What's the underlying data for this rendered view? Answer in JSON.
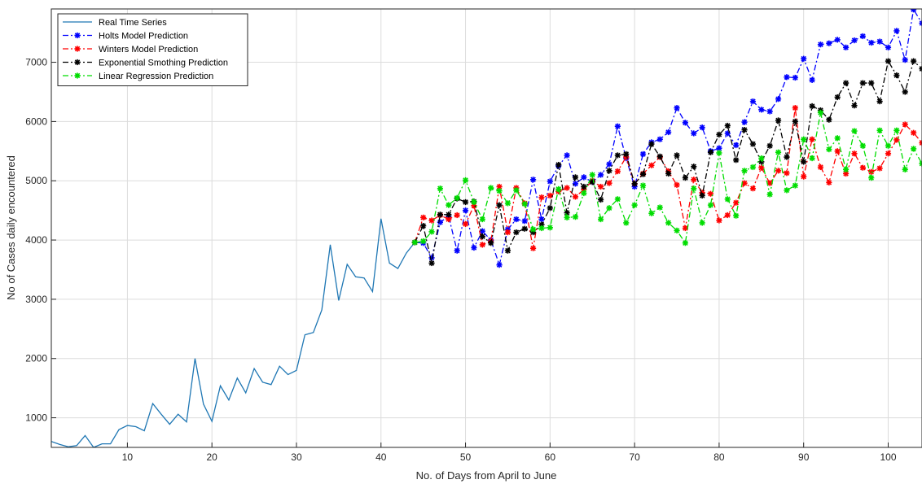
{
  "chart_data": {
    "type": "line",
    "xlabel": "No. of Days from April to June",
    "ylabel": "No of Cases daily encountered",
    "xlim": [
      1,
      104
    ],
    "ylim": [
      500,
      7900
    ],
    "xticks": [
      10,
      20,
      30,
      40,
      50,
      60,
      70,
      80,
      90,
      100
    ],
    "yticks": [
      1000,
      2000,
      3000,
      4000,
      5000,
      6000,
      7000
    ],
    "grid": true,
    "legend_position": "top-left",
    "series": [
      {
        "name": "Real Time Series",
        "color": "#1f77b4",
        "style": "solid",
        "marker": "none",
        "x": [
          1,
          2,
          3,
          4,
          5,
          6,
          7,
          8,
          9,
          10,
          11,
          12,
          13,
          14,
          15,
          16,
          17,
          18,
          19,
          20,
          21,
          22,
          23,
          24,
          25,
          26,
          27,
          28,
          29,
          30,
          31,
          32,
          33,
          34,
          35,
          36,
          37,
          38,
          39,
          40,
          41,
          42,
          43,
          44
        ],
        "y": [
          600,
          550,
          510,
          530,
          700,
          500,
          560,
          560,
          800,
          870,
          850,
          780,
          1240,
          1060,
          890,
          1060,
          930,
          2000,
          1230,
          940,
          1540,
          1300,
          1670,
          1420,
          1830,
          1600,
          1560,
          1870,
          1730,
          1800,
          2400,
          2440,
          2820,
          3920,
          2980,
          3590,
          3380,
          3360,
          3130,
          4360,
          3610,
          3520,
          3780,
          3960
        ]
      },
      {
        "name": "Holts Model Prediction",
        "color": "#0000ff",
        "style": "dash-dot",
        "marker": "star",
        "x": [
          44,
          45,
          46,
          47,
          48,
          49,
          50,
          51,
          52,
          53,
          54,
          55,
          56,
          57,
          58,
          59,
          60,
          61,
          62,
          63,
          64,
          65,
          66,
          67,
          68,
          69,
          70,
          71,
          72,
          73,
          74,
          75,
          76,
          77,
          78,
          79,
          80,
          81,
          82,
          83,
          84,
          85,
          86,
          87,
          88,
          89,
          90,
          91,
          92,
          93,
          94,
          95,
          96,
          97,
          98,
          99,
          100,
          101,
          102,
          103,
          104
        ],
        "y": [
          3960,
          3950,
          3700,
          4300,
          4400,
          3820,
          4500,
          3870,
          4150,
          4000,
          3580,
          4180,
          4350,
          4320,
          5020,
          4350,
          4990,
          5250,
          5430,
          4950,
          5060,
          4980,
          5100,
          5280,
          5920,
          5380,
          4900,
          5450,
          5650,
          5700,
          5820,
          6230,
          5980,
          5800,
          5900,
          5500,
          5550,
          5800,
          5600,
          5990,
          6340,
          6200,
          6170,
          6380,
          6750,
          6740,
          7060,
          6700,
          7300,
          7320,
          7380,
          7250,
          7370,
          7440,
          7330,
          7350,
          7250,
          7530,
          7040,
          7890,
          7660
        ]
      },
      {
        "name": "Winters Model Prediction",
        "color": "#ff0000",
        "style": "dash-dot",
        "marker": "star",
        "x": [
          44,
          45,
          46,
          47,
          48,
          49,
          50,
          51,
          52,
          53,
          54,
          55,
          56,
          57,
          58,
          59,
          60,
          61,
          62,
          63,
          64,
          65,
          66,
          67,
          68,
          69,
          70,
          71,
          72,
          73,
          74,
          75,
          76,
          77,
          78,
          79,
          80,
          81,
          82,
          83,
          84,
          85,
          86,
          87,
          88,
          89,
          90,
          91,
          92,
          93,
          94,
          95,
          96,
          97,
          98,
          99,
          100,
          101,
          102,
          103,
          104
        ],
        "y": [
          3960,
          4380,
          4330,
          4420,
          4350,
          4420,
          4270,
          4580,
          3920,
          3980,
          4900,
          4130,
          4880,
          4620,
          3860,
          4720,
          4750,
          4820,
          4880,
          4730,
          4850,
          5000,
          4900,
          4960,
          5160,
          5400,
          4950,
          5120,
          5260,
          5400,
          5160,
          4930,
          4200,
          5020,
          4800,
          4780,
          4330,
          4420,
          4630,
          4960,
          4870,
          5220,
          4960,
          5170,
          5130,
          6230,
          5070,
          5700,
          5230,
          4970,
          5500,
          5120,
          5460,
          5220,
          5150,
          5210,
          5460,
          5690,
          5950,
          5810,
          5640
        ]
      },
      {
        "name": "Exponential Smothing Prediction",
        "color": "#000000",
        "style": "dash-dot",
        "marker": "star",
        "x": [
          44,
          45,
          46,
          47,
          48,
          49,
          50,
          51,
          52,
          53,
          54,
          55,
          56,
          57,
          58,
          59,
          60,
          61,
          62,
          63,
          64,
          65,
          66,
          67,
          68,
          69,
          70,
          71,
          72,
          73,
          74,
          75,
          76,
          77,
          78,
          79,
          80,
          81,
          82,
          83,
          84,
          85,
          86,
          87,
          88,
          89,
          90,
          91,
          92,
          93,
          94,
          95,
          96,
          97,
          98,
          99,
          100,
          101,
          102,
          103,
          104
        ],
        "y": [
          3960,
          4240,
          3610,
          4430,
          4430,
          4700,
          4640,
          4650,
          4060,
          3950,
          4590,
          3820,
          4130,
          4190,
          4130,
          4260,
          4540,
          5270,
          4460,
          5060,
          4900,
          4980,
          4680,
          5170,
          5430,
          5450,
          4950,
          5110,
          5620,
          5410,
          5120,
          5430,
          5050,
          5240,
          4750,
          5480,
          5780,
          5930,
          5350,
          5860,
          5620,
          5320,
          5590,
          6020,
          5400,
          6000,
          5320,
          6260,
          6190,
          6030,
          6410,
          6650,
          6270,
          6650,
          6650,
          6340,
          7020,
          6780,
          6500,
          7020,
          6890
        ]
      },
      {
        "name": "Linear Regression Prediction",
        "color": "#00dd00",
        "style": "dash-dot",
        "marker": "star",
        "x": [
          44,
          45,
          46,
          47,
          48,
          49,
          50,
          51,
          52,
          53,
          54,
          55,
          56,
          57,
          58,
          59,
          60,
          61,
          62,
          63,
          64,
          65,
          66,
          67,
          68,
          69,
          70,
          71,
          72,
          73,
          74,
          75,
          76,
          77,
          78,
          79,
          80,
          81,
          82,
          83,
          84,
          85,
          86,
          87,
          88,
          89,
          90,
          91,
          92,
          93,
          94,
          95,
          96,
          97,
          98,
          99,
          100,
          101,
          102,
          103,
          104
        ],
        "y": [
          3960,
          3980,
          4140,
          4870,
          4590,
          4710,
          5010,
          4640,
          4350,
          4880,
          4830,
          4620,
          4840,
          4610,
          4180,
          4200,
          4210,
          4860,
          4380,
          4390,
          4790,
          5100,
          4350,
          4540,
          4690,
          4290,
          4590,
          4920,
          4450,
          4550,
          4290,
          4160,
          3950,
          4870,
          4290,
          4590,
          5470,
          4690,
          4410,
          5170,
          5230,
          5380,
          4770,
          5480,
          4840,
          4920,
          5700,
          5380,
          6150,
          5530,
          5720,
          5190,
          5840,
          5590,
          5050,
          5850,
          5590,
          5850,
          5190,
          5540,
          5290
        ]
      }
    ]
  }
}
